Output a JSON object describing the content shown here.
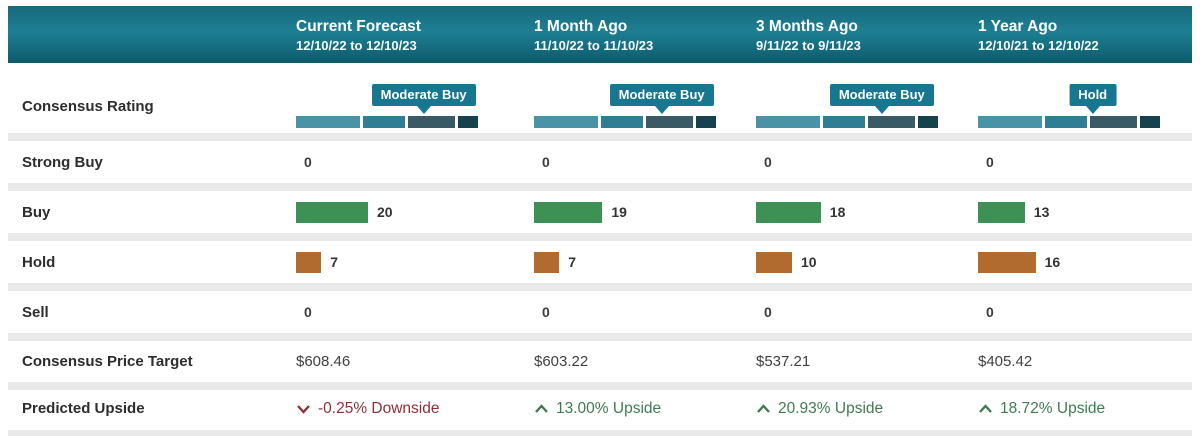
{
  "header": {
    "columns": [
      {
        "title": "Current Forecast",
        "dates": "12/10/22 to 12/10/23"
      },
      {
        "title": "1 Month Ago",
        "dates": "11/10/22 to 11/10/23"
      },
      {
        "title": "3 Months Ago",
        "dates": "9/11/22 to 9/11/23"
      },
      {
        "title": "1 Year Ago",
        "dates": "12/10/21 to 12/10/22"
      }
    ]
  },
  "row_labels": {
    "consensus_rating": "Consensus Rating",
    "strong_buy": "Strong Buy",
    "buy": "Buy",
    "hold": "Hold",
    "sell": "Sell",
    "price_target": "Consensus Price Target",
    "predicted_upside": "Predicted Upside"
  },
  "columns": [
    {
      "rating": "Moderate Buy",
      "rating_pointer_pct": 69,
      "strong_buy": "0",
      "buy_count": 20,
      "hold_count": 7,
      "sell": "0",
      "price_target": "$608.46",
      "upside_text": "-0.25% Downside",
      "upside_direction": "down"
    },
    {
      "rating": "Moderate Buy",
      "rating_pointer_pct": 69,
      "strong_buy": "0",
      "buy_count": 19,
      "hold_count": 7,
      "sell": "0",
      "price_target": "$603.22",
      "upside_text": "13.00% Upside",
      "upside_direction": "up"
    },
    {
      "rating": "Moderate Buy",
      "rating_pointer_pct": 68,
      "strong_buy": "0",
      "buy_count": 18,
      "hold_count": 10,
      "sell": "0",
      "price_target": "$537.21",
      "upside_text": "20.93% Upside",
      "upside_direction": "up"
    },
    {
      "rating": "Hold",
      "rating_pointer_pct": 62,
      "strong_buy": "0",
      "buy_count": 13,
      "hold_count": 16,
      "sell": "0",
      "price_target": "$405.42",
      "upside_text": "18.72% Upside",
      "upside_direction": "up"
    }
  ],
  "colors": {
    "header_teal": "#1e7f93",
    "badge_teal": "#177791",
    "gauge_segments": [
      "#4a93a6",
      "#2f7e93",
      "#3a5a66",
      "#16424d"
    ],
    "buy_bar_green": "#3e9155",
    "hold_bar_orange": "#b26b2e",
    "upside_green": "#3e7b53",
    "downside_red": "#8f3039",
    "row_gap_gray": "#e9e9e9"
  },
  "chart_data": {
    "type": "table",
    "title": "Analyst Consensus Rating Comparison",
    "categories": [
      "Current Forecast 12/10/22 to 12/10/23",
      "1 Month Ago 11/10/22 to 11/10/23",
      "3 Months Ago 9/11/22 to 9/11/23",
      "1 Year Ago 12/10/21 to 12/10/22"
    ],
    "series": [
      {
        "name": "Consensus Rating",
        "values": [
          "Moderate Buy",
          "Moderate Buy",
          "Moderate Buy",
          "Hold"
        ]
      },
      {
        "name": "Strong Buy",
        "values": [
          0,
          0,
          0,
          0
        ]
      },
      {
        "name": "Buy",
        "values": [
          20,
          19,
          18,
          13
        ]
      },
      {
        "name": "Hold",
        "values": [
          7,
          7,
          10,
          16
        ]
      },
      {
        "name": "Sell",
        "values": [
          0,
          0,
          0,
          0
        ]
      },
      {
        "name": "Consensus Price Target",
        "values": [
          "$608.46",
          "$603.22",
          "$537.21",
          "$405.42"
        ]
      },
      {
        "name": "Predicted Upside",
        "values": [
          "-0.25% Downside",
          "13.00% Upside",
          "20.93% Upside",
          "18.72% Upside"
        ]
      }
    ],
    "legend_position": "none",
    "grid": false
  }
}
